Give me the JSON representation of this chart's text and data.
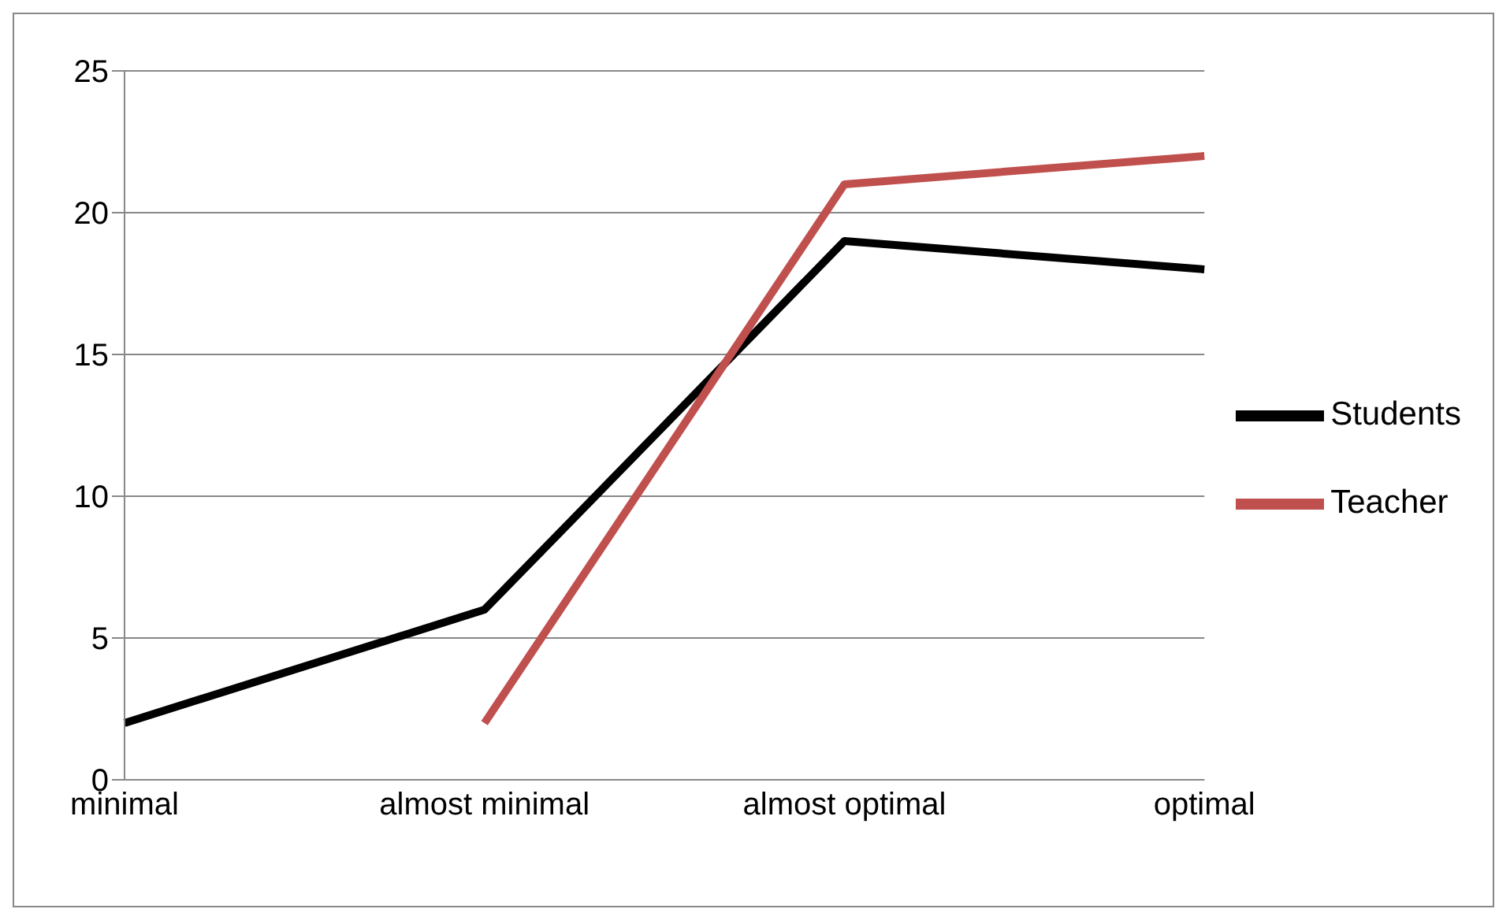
{
  "chart_data": {
    "type": "line",
    "categories": [
      "minimal",
      "almost minimal",
      "almost optimal",
      "optimal"
    ],
    "series": [
      {
        "name": "Students",
        "color": "#000000",
        "values": [
          2,
          6,
          19,
          18
        ]
      },
      {
        "name": "Teacher",
        "color": "#c0504d",
        "values": [
          null,
          2,
          21,
          22
        ]
      }
    ],
    "ylim": [
      0,
      25
    ],
    "yticks": [
      0,
      5,
      10,
      15,
      20,
      25
    ],
    "grid": "y",
    "legend": "right",
    "marker": "none",
    "line_style": "solid"
  }
}
